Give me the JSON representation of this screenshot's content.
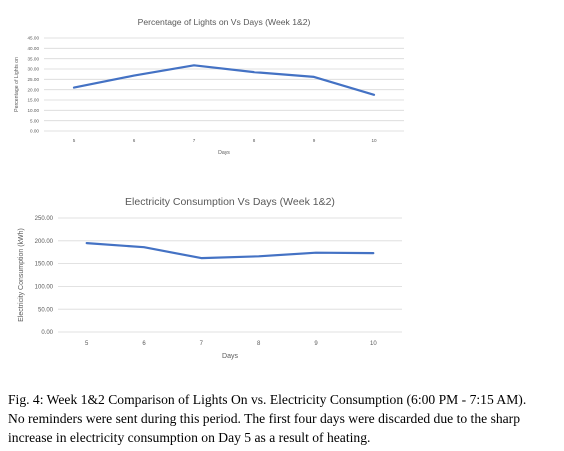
{
  "chart_data": [
    {
      "type": "line",
      "title": "Percentage of Lights on Vs Days (Week 1&2)",
      "xlabel": "Days",
      "ylabel": "Percentage of Lights on",
      "categories": [
        "5",
        "6",
        "7",
        "8",
        "9",
        "10"
      ],
      "series": [
        {
          "values": [
            21,
            26.8,
            31.8,
            28.5,
            26.2,
            17.5
          ]
        }
      ],
      "ylim": [
        0,
        45
      ],
      "yticks": [
        "0.00",
        "5.00",
        "10.00",
        "15.00",
        "20.00",
        "25.00",
        "30.00",
        "35.00",
        "40.00",
        "45.00"
      ],
      "grid": true,
      "line_color": "#4472c4"
    },
    {
      "type": "line",
      "title": "Electricity Consumption Vs Days (Week 1&2)",
      "xlabel": "Days",
      "ylabel": "Electricity Consumption (kWh)",
      "categories": [
        "5",
        "6",
        "7",
        "8",
        "9",
        "10"
      ],
      "series": [
        {
          "values": [
            195,
            186,
            162,
            166,
            174,
            173
          ]
        }
      ],
      "ylim": [
        0,
        250
      ],
      "yticks": [
        "0.00",
        "50.00",
        "100.00",
        "150.00",
        "200.00",
        "250.00"
      ],
      "grid": true,
      "line_color": "#4472c4"
    }
  ],
  "caption": {
    "line1": "Fig. 4: Week 1&2 Comparison of Lights On vs. Electricity Consumption (6:00 PM - 7:15 AM).",
    "line2": "No reminders were sent during this period. The first four days were discarded due to the sharp",
    "line3": "increase in electricity consumption on Day 5 as a result of heating."
  }
}
